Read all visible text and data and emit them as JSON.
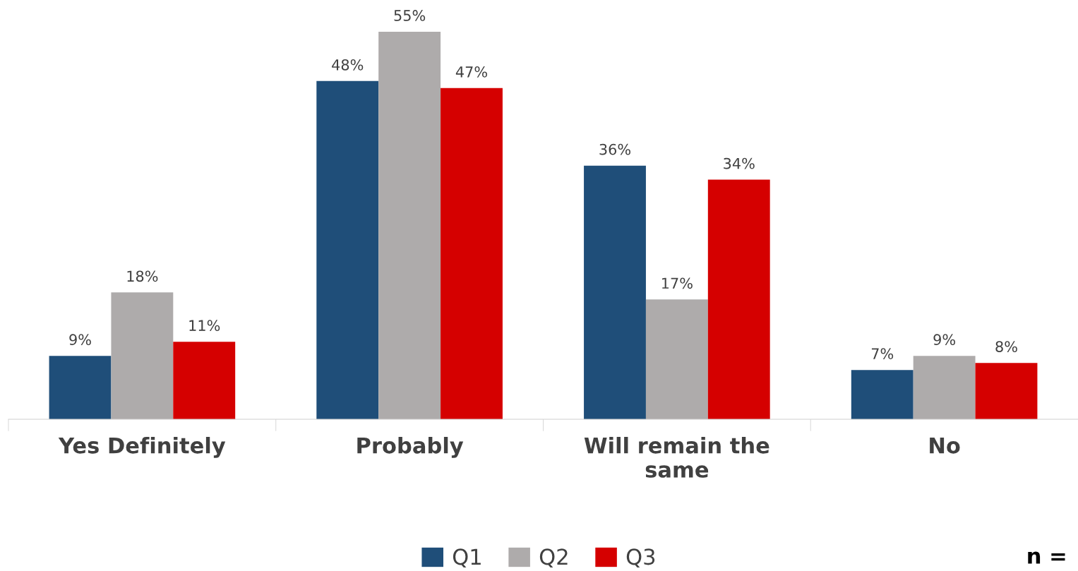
{
  "chart_data": {
    "type": "bar",
    "categories": [
      "Yes Definitely",
      "Probably",
      "Will remain the\nsame",
      "No"
    ],
    "series": [
      {
        "name": "Q1",
        "color": "#1f4e79",
        "values": [
          9,
          48,
          36,
          7
        ],
        "value_labels": [
          "9%",
          "48%",
          "36%",
          "7%"
        ]
      },
      {
        "name": "Q2",
        "color": "#aeabab",
        "values": [
          18,
          55,
          17,
          9
        ],
        "value_labels": [
          "18%",
          "55%",
          "17%",
          "9%"
        ]
      },
      {
        "name": "Q3",
        "color": "#d50000",
        "values": [
          11,
          47,
          34,
          8
        ],
        "value_labels": [
          "11%",
          "47%",
          "34%",
          "8%"
        ]
      }
    ],
    "legend": "bottom",
    "grid": false,
    "tick_labels": "x",
    "annotations": [
      "n ="
    ]
  }
}
